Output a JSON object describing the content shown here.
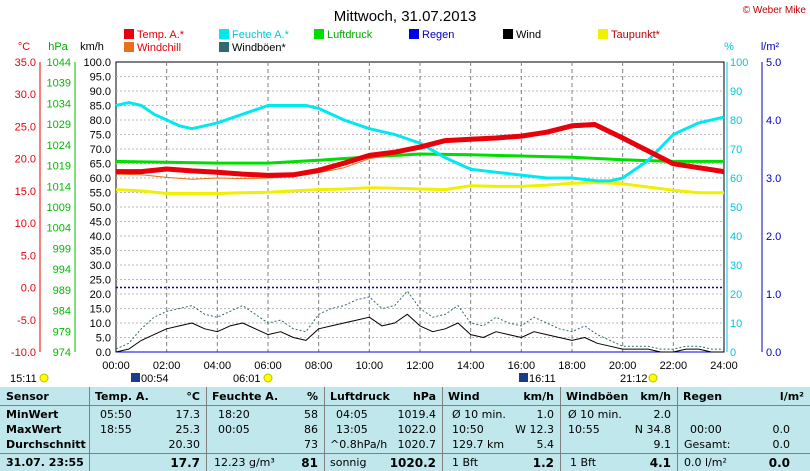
{
  "title": "Mittwoch, 31.07.2013",
  "copyright": "© Weber Mike",
  "colors": {
    "temp": "#e8000a",
    "windchill": "#e8701a",
    "humidity": "#00e8f0",
    "gust": "#2f6a70",
    "pressure": "#00dd00",
    "rain": "#0000e8",
    "wind": "#000000",
    "dewpoint": "#f0f000",
    "axis_temp": "#e8000a",
    "axis_press": "#00bb00",
    "axis_hum": "#00c8d8",
    "axis_rain": "#0000c0"
  },
  "legend": [
    {
      "label": "Temp. A.*",
      "color": "#e8000a",
      "label_color": "#e8000a"
    },
    {
      "label": "Feuchte A.*",
      "color": "#00e8f0",
      "label_color": "#00c8d8"
    },
    {
      "label": "Luftdruck",
      "color": "#00dd00",
      "label_color": "#00aa00"
    },
    {
      "label": "Regen",
      "color": "#0000e8",
      "label_color": "#0000c0"
    },
    {
      "label": "Wind",
      "color": "#000000",
      "label_color": "#000000"
    },
    {
      "label": "Taupunkt*",
      "color": "#f0f000",
      "label_color": "#c00000"
    },
    {
      "label": "Windchill",
      "color": "#e8701a",
      "label_color": "#e8000a"
    },
    {
      "label": "Windböen*",
      "color": "#2f6a70",
      "label_color": "#000000"
    }
  ],
  "axis_titles": {
    "temp": "°C",
    "press": "hPa",
    "wind": "km/h",
    "hum": "%",
    "rain": "l/m²"
  },
  "sunrise": "06:01",
  "sunset": "21:12",
  "moonrise": "00:54",
  "moonset": "16:11",
  "left_marker": "15:11",
  "chart_data": {
    "type": "line",
    "x_ticks": [
      "00:00",
      "02:00",
      "04:00",
      "06:00",
      "08:00",
      "10:00",
      "12:00",
      "14:00",
      "16:00",
      "18:00",
      "20:00",
      "22:00",
      "24:00"
    ],
    "axes": {
      "temp_c": {
        "ticks": [
          "35.0",
          "30.0",
          "25.0",
          "20.0",
          "15.0",
          "10.0",
          "5.0",
          "0.0",
          "-5.0",
          "-10.0"
        ],
        "range": [
          -10,
          35
        ]
      },
      "pressure_hpa": {
        "ticks": [
          "1044",
          "1039",
          "1034",
          "1029",
          "1024",
          "1019",
          "1014",
          "1009",
          "1004",
          "999",
          "994",
          "989",
          "984",
          "979",
          "974"
        ],
        "range": [
          974,
          1044
        ]
      },
      "wind_kmh": {
        "ticks": [
          "100.0",
          "95.0",
          "90.0",
          "85.0",
          "80.0",
          "75.0",
          "70.0",
          "65.0",
          "60.0",
          "55.0",
          "50.0",
          "45.0",
          "40.0",
          "35.0",
          "30.0",
          "25.0",
          "20.0",
          "15.0",
          "10.0",
          "5.0",
          "0.0"
        ],
        "range": [
          0,
          100
        ]
      },
      "humidity_pct": {
        "ticks": [
          "100",
          "90",
          "80",
          "70",
          "60",
          "50",
          "40",
          "30",
          "20",
          "10",
          "0"
        ],
        "range": [
          0,
          100
        ]
      },
      "rain_lm2": {
        "ticks": [
          "5.0",
          "4.0",
          "3.0",
          "2.0",
          "1.0",
          "0.0"
        ],
        "range": [
          0,
          5
        ]
      }
    },
    "series": [
      {
        "name": "Temp. A.*",
        "axis": "temp_c",
        "x": [
          0,
          1,
          2,
          3,
          4,
          5,
          6,
          7,
          8,
          9,
          10,
          11,
          12,
          13,
          14,
          15,
          16,
          17,
          18,
          18.9,
          20,
          21,
          22,
          23,
          24
        ],
        "y": [
          18.0,
          18.0,
          18.4,
          18.1,
          17.9,
          17.6,
          17.4,
          17.5,
          18.2,
          19.3,
          20.5,
          21.0,
          21.8,
          22.8,
          23.0,
          23.2,
          23.5,
          24.1,
          25.1,
          25.3,
          23.2,
          21.2,
          19.2,
          18.6,
          18.0
        ]
      },
      {
        "name": "Windchill",
        "axis": "temp_c",
        "x": [
          0,
          1,
          2,
          3,
          4,
          5,
          6,
          7,
          8,
          9,
          10,
          11,
          12,
          13,
          14,
          15,
          16,
          17,
          18,
          19,
          20,
          21,
          22,
          23,
          24
        ],
        "y": [
          17.6,
          17.5,
          17.1,
          16.8,
          17.0,
          16.9,
          17.0,
          17.2,
          17.8,
          18.6,
          20.0,
          20.7,
          21.6,
          22.8,
          23.0,
          23.3,
          23.4,
          24.0,
          24.8,
          25.0,
          22.9,
          21.0,
          19.1,
          18.5,
          17.9
        ]
      },
      {
        "name": "Feuchte A.*",
        "axis": "humidity_pct",
        "x": [
          0,
          0.5,
          1,
          1.5,
          2,
          2.5,
          3,
          4,
          5,
          6,
          7,
          7.5,
          8,
          9,
          10,
          11,
          12,
          13,
          14,
          15,
          16,
          17,
          18,
          19,
          19.5,
          20,
          21,
          22,
          23,
          24
        ],
        "y": [
          85,
          86,
          85,
          82,
          80,
          78,
          77,
          79,
          82,
          85,
          85,
          85,
          84,
          80,
          77,
          75,
          72,
          67,
          63,
          62,
          61,
          60,
          60,
          59,
          59,
          60,
          66,
          75,
          79,
          81
        ]
      },
      {
        "name": "Luftdruck",
        "axis": "pressure_hpa",
        "x": [
          0,
          2,
          4,
          6,
          8,
          10,
          12,
          14,
          16,
          18,
          20,
          22,
          24
        ],
        "y": [
          1020.0,
          1019.8,
          1019.6,
          1019.6,
          1020.3,
          1021.1,
          1021.8,
          1021.6,
          1021.3,
          1021.0,
          1020.4,
          1020.0,
          1020.0
        ]
      },
      {
        "name": "Taupunkt*",
        "axis": "temp_c",
        "x": [
          0,
          1,
          2,
          3,
          4,
          5,
          6,
          7,
          8,
          9,
          10,
          11,
          12,
          13,
          14,
          15,
          16,
          17,
          18,
          19,
          20,
          21,
          22,
          23,
          24
        ],
        "y": [
          15.2,
          15.0,
          14.6,
          14.6,
          14.6,
          14.7,
          14.8,
          15.0,
          15.2,
          15.3,
          15.5,
          15.4,
          15.3,
          15.2,
          15.8,
          15.7,
          15.7,
          15.9,
          16.2,
          16.3,
          16.1,
          15.6,
          15.1,
          14.7,
          14.7
        ]
      },
      {
        "name": "Wind",
        "axis": "wind_kmh",
        "x": [
          0,
          0.5,
          1,
          1.5,
          2,
          2.5,
          3,
          3.5,
          4,
          4.5,
          5,
          5.5,
          6,
          6.5,
          7,
          7.5,
          8,
          8.5,
          9,
          9.5,
          10,
          10.5,
          11,
          11.5,
          12,
          12.5,
          13,
          13.5,
          14,
          14.5,
          15,
          15.5,
          16,
          16.5,
          17,
          17.5,
          18,
          18.5,
          19,
          19.5,
          20,
          20.5,
          21,
          21.5,
          22,
          22.5,
          23,
          23.5,
          24
        ],
        "y": [
          0,
          1,
          4,
          6,
          8,
          9,
          10,
          8,
          7,
          9,
          10,
          8,
          6,
          7,
          5,
          4,
          8,
          9,
          10,
          11,
          12,
          9,
          10,
          13,
          9,
          7,
          8,
          10,
          6,
          5,
          7,
          6,
          5,
          7,
          6,
          5,
          4,
          5,
          3,
          2,
          1,
          1,
          1,
          0,
          0,
          1,
          1,
          0,
          0
        ]
      },
      {
        "name": "Windböen*",
        "axis": "wind_kmh",
        "x": [
          0,
          0.5,
          1,
          1.5,
          2,
          2.5,
          3,
          3.5,
          4,
          4.5,
          5,
          5.5,
          6,
          6.5,
          7,
          7.5,
          8,
          8.5,
          9,
          9.5,
          10,
          10.5,
          11,
          11.5,
          12,
          12.5,
          13,
          13.5,
          14,
          14.5,
          15,
          15.5,
          16,
          16.5,
          17,
          17.5,
          18,
          18.5,
          19,
          19.5,
          20,
          20.5,
          21,
          21.5,
          22,
          22.5,
          23,
          23.5,
          24
        ],
        "y": [
          1,
          3,
          8,
          12,
          14,
          15,
          16,
          13,
          12,
          14,
          16,
          13,
          10,
          11,
          8,
          7,
          13,
          15,
          16,
          18,
          19,
          15,
          16,
          21,
          15,
          12,
          13,
          16,
          10,
          9,
          12,
          10,
          9,
          12,
          10,
          8,
          7,
          9,
          6,
          4,
          2,
          2,
          2,
          1,
          1,
          2,
          2,
          1,
          1
        ]
      },
      {
        "name": "Regen",
        "axis": "rain_lm2",
        "x": [
          0,
          24
        ],
        "y": [
          0,
          0
        ]
      }
    ],
    "reference_lines": [
      {
        "axis": "temp_c",
        "y": 0.0,
        "color": "#0000c0"
      }
    ],
    "grid": true,
    "legend_position": "top"
  },
  "table": {
    "headers": [
      {
        "label": "Sensor",
        "unit": ""
      },
      {
        "label": "Temp. A.",
        "unit": "°C"
      },
      {
        "label": "Feuchte A.",
        "unit": "%"
      },
      {
        "label": "Luftdruck",
        "unit": "hPa"
      },
      {
        "label": "Wind",
        "unit": "km/h"
      },
      {
        "label": "Windböen",
        "unit": "km/h"
      },
      {
        "label": "Regen",
        "unit": "l/m²"
      }
    ],
    "rows": [
      {
        "label": "MinWert",
        "temp_time": "05:50",
        "temp_val": "17.3",
        "hum_time": "18:20",
        "hum_val": "58",
        "press_time": "04:05",
        "press_val": "1019.4",
        "wind_a": "Ø 10 min.",
        "wind_val": "1.0",
        "gust_a": "Ø 10 min.",
        "gust_val": "2.0",
        "rain_a": "",
        "rain_val": ""
      },
      {
        "label": "MaxWert",
        "temp_time": "18:55",
        "temp_val": "25.3",
        "hum_time": "00:05",
        "hum_val": "86",
        "press_time": "13:05",
        "press_val": "1022.0",
        "wind_a": "10:50",
        "wind_b": "W 12.3",
        "gust_a": "10:55",
        "gust_b": "N 34.8",
        "rain_a": "00:00",
        "rain_val": "0.0"
      },
      {
        "label": "Durchschnitt",
        "temp_time": "",
        "temp_val": "20.30",
        "hum_time": "",
        "hum_val": "73",
        "press_time": "^0.8hPa/h",
        "press_val": "1020.7",
        "wind_a": "129.7 km",
        "wind_val": "5.4",
        "gust_a": "",
        "gust_val": "9.1",
        "rain_a": "Gesamt:",
        "rain_val": "0.0"
      },
      {
        "label": "31.07. 23:55",
        "temp_time": "",
        "temp_val": "17.7",
        "hum_time": "12.23 g/m³",
        "hum_val": "81",
        "press_time": "sonnig",
        "press_val": "1020.2",
        "wind_a": "1 Bft",
        "wind_val": "1.2",
        "gust_a": "1 Bft",
        "gust_val": "4.1",
        "rain_a": "0.0 l/m²",
        "rain_val": "0.0"
      }
    ]
  }
}
